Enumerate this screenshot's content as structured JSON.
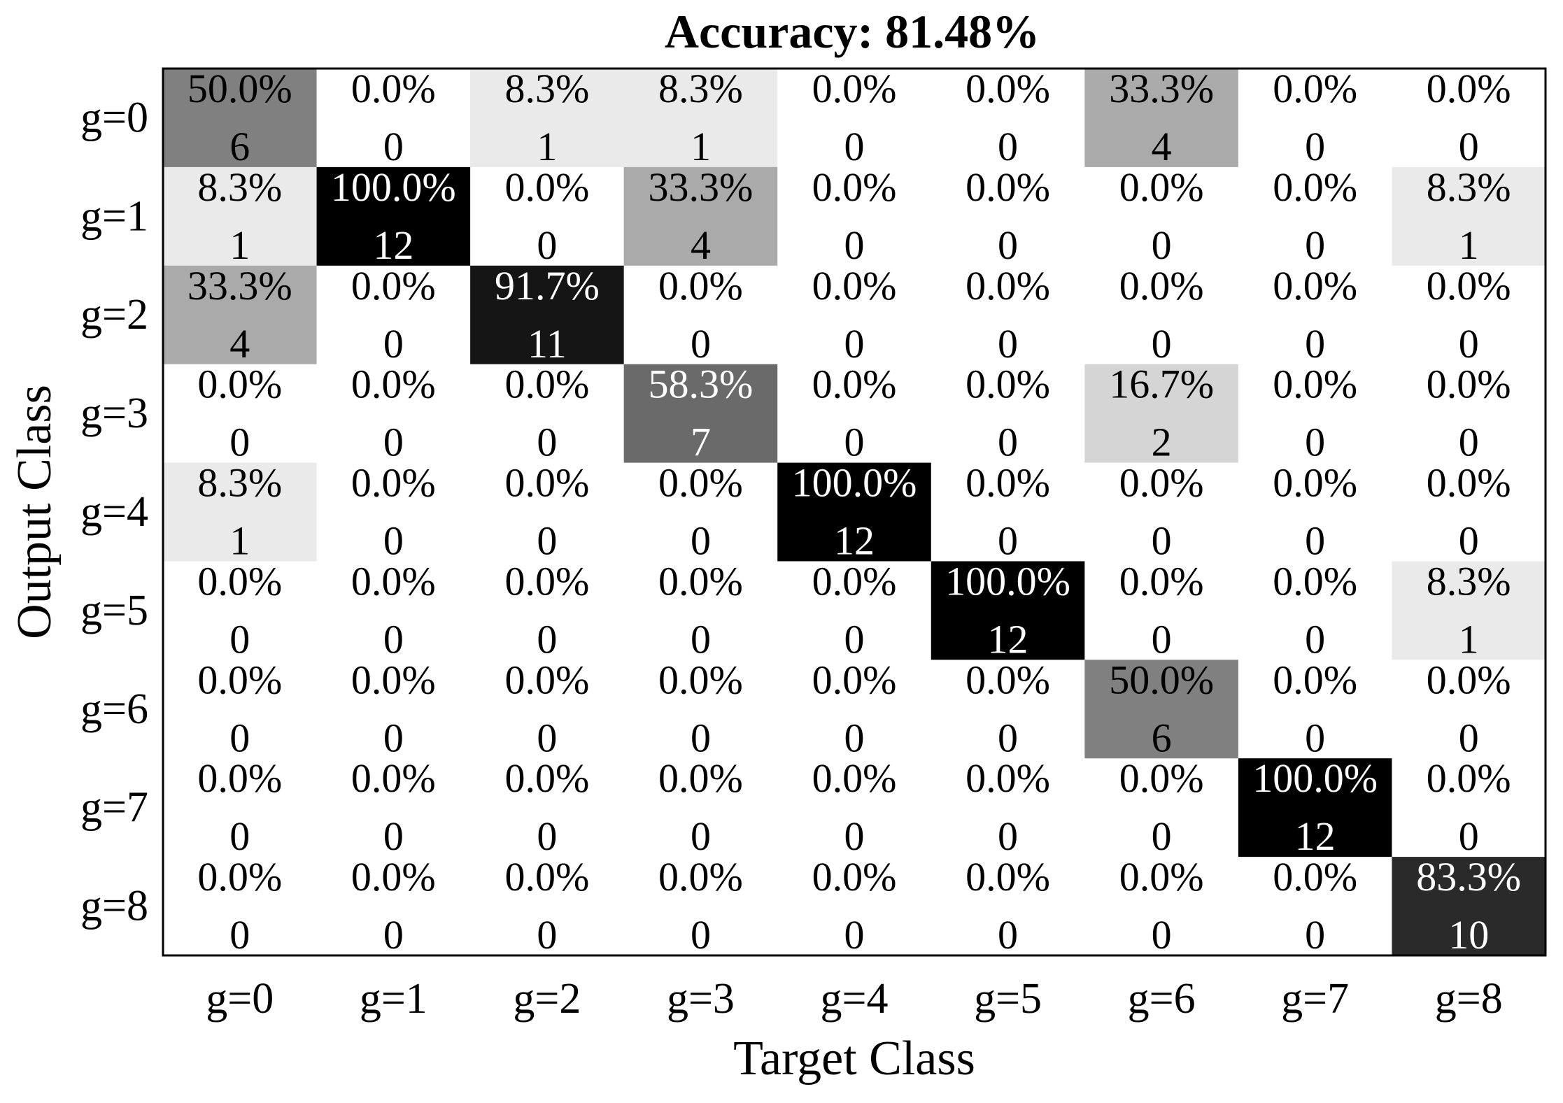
{
  "chart_data": {
    "type": "heatmap",
    "title": "Accuracy: 81.48%",
    "xlabel": "Target Class",
    "ylabel": "Output Class",
    "x_categories": [
      "g=0",
      "g=1",
      "g=2",
      "g=3",
      "g=4",
      "g=5",
      "g=6",
      "g=7",
      "g=8"
    ],
    "y_categories": [
      "g=0",
      "g=1",
      "g=2",
      "g=3",
      "g=4",
      "g=5",
      "g=6",
      "g=7",
      "g=8"
    ],
    "counts": [
      [
        6,
        0,
        1,
        1,
        0,
        0,
        4,
        0,
        0
      ],
      [
        1,
        12,
        0,
        4,
        0,
        0,
        0,
        0,
        1
      ],
      [
        4,
        0,
        11,
        0,
        0,
        0,
        0,
        0,
        0
      ],
      [
        0,
        0,
        0,
        7,
        0,
        0,
        2,
        0,
        0
      ],
      [
        1,
        0,
        0,
        0,
        12,
        0,
        0,
        0,
        0
      ],
      [
        0,
        0,
        0,
        0,
        0,
        12,
        0,
        0,
        1
      ],
      [
        0,
        0,
        0,
        0,
        0,
        0,
        6,
        0,
        0
      ],
      [
        0,
        0,
        0,
        0,
        0,
        0,
        0,
        12,
        0
      ],
      [
        0,
        0,
        0,
        0,
        0,
        0,
        0,
        0,
        10
      ]
    ],
    "percentages": [
      [
        "50.0%",
        "0.0%",
        "8.3%",
        "8.3%",
        "0.0%",
        "0.0%",
        "33.3%",
        "0.0%",
        "0.0%"
      ],
      [
        "8.3%",
        "100.0%",
        "0.0%",
        "33.3%",
        "0.0%",
        "0.0%",
        "0.0%",
        "0.0%",
        "8.3%"
      ],
      [
        "33.3%",
        "0.0%",
        "91.7%",
        "0.0%",
        "0.0%",
        "0.0%",
        "0.0%",
        "0.0%",
        "0.0%"
      ],
      [
        "0.0%",
        "0.0%",
        "0.0%",
        "58.3%",
        "0.0%",
        "0.0%",
        "16.7%",
        "0.0%",
        "0.0%"
      ],
      [
        "8.3%",
        "0.0%",
        "0.0%",
        "0.0%",
        "100.0%",
        "0.0%",
        "0.0%",
        "0.0%",
        "0.0%"
      ],
      [
        "0.0%",
        "0.0%",
        "0.0%",
        "0.0%",
        "0.0%",
        "100.0%",
        "0.0%",
        "0.0%",
        "8.3%"
      ],
      [
        "0.0%",
        "0.0%",
        "0.0%",
        "0.0%",
        "0.0%",
        "0.0%",
        "50.0%",
        "0.0%",
        "0.0%"
      ],
      [
        "0.0%",
        "0.0%",
        "0.0%",
        "0.0%",
        "0.0%",
        "0.0%",
        "0.0%",
        "100.0%",
        "0.0%"
      ],
      [
        "0.0%",
        "0.0%",
        "0.0%",
        "0.0%",
        "0.0%",
        "0.0%",
        "0.0%",
        "0.0%",
        "83.3%"
      ]
    ],
    "column_total": 12,
    "colormap": "grayscale (white = 0, black = column total)",
    "grid": false,
    "colors": {
      "low": "#ffffff",
      "high": "#000000",
      "text_dark": "#000000",
      "text_light": "#ffffff",
      "frame": "#000000"
    }
  }
}
